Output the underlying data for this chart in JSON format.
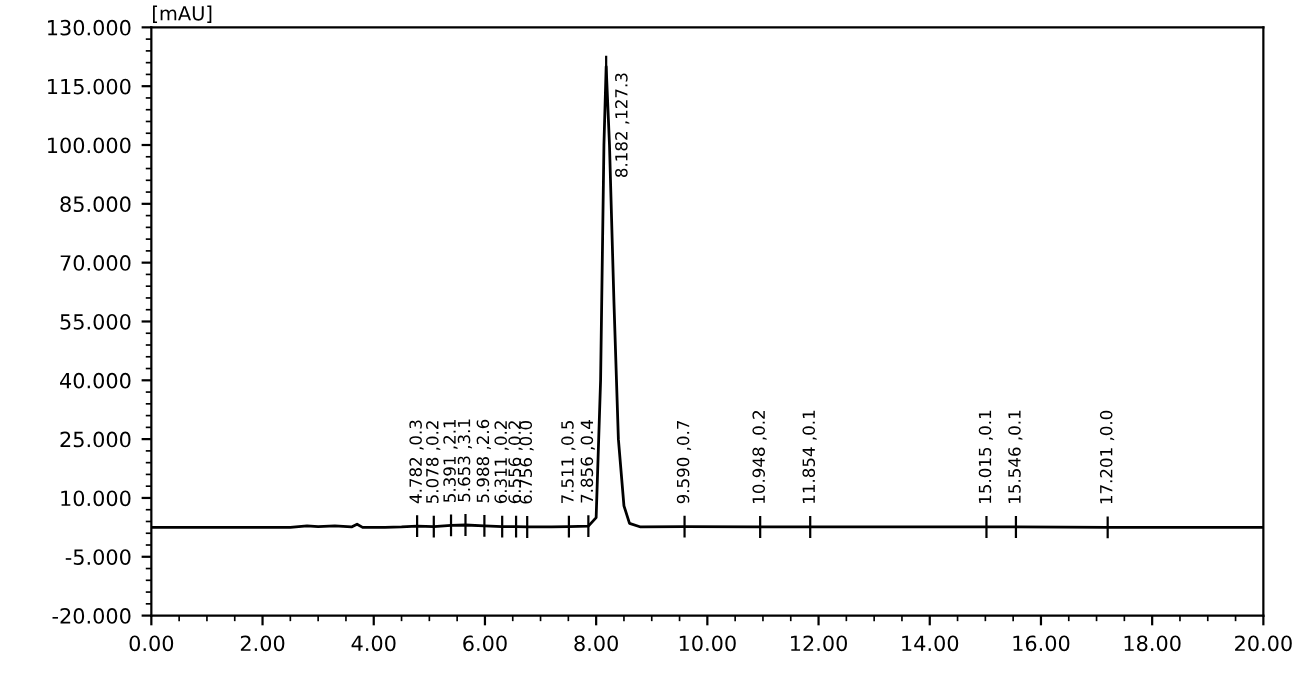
{
  "chart_data": {
    "type": "line",
    "ylabel": "[mAU]",
    "x": [
      0,
      2.5,
      2.8,
      3.0,
      3.3,
      3.6,
      3.7,
      3.8,
      4.2,
      4.5,
      4.78,
      5.08,
      5.39,
      5.65,
      5.99,
      6.31,
      6.56,
      6.76,
      7.2,
      7.51,
      7.86,
      8.0,
      8.08,
      8.14,
      8.18,
      8.24,
      8.32,
      8.4,
      8.5,
      8.6,
      8.8,
      9.59,
      10.95,
      11.85,
      15.02,
      15.55,
      17.2,
      20
    ],
    "series": [
      {
        "color": "#000000",
        "values": [
          2.5,
          2.5,
          2.9,
          2.7,
          2.9,
          2.6,
          3.3,
          2.5,
          2.5,
          2.6,
          2.8,
          2.7,
          3.0,
          3.1,
          2.9,
          2.7,
          2.7,
          2.6,
          2.6,
          2.7,
          2.8,
          5,
          40,
          100,
          120,
          100,
          60,
          25,
          8,
          3.5,
          2.6,
          2.7,
          2.6,
          2.6,
          2.6,
          2.6,
          2.5,
          2.5
        ]
      }
    ],
    "xlim": [
      0,
      20
    ],
    "xticks": [
      {
        "value": 0,
        "label": "0.00"
      },
      {
        "value": 2,
        "label": "2.00"
      },
      {
        "value": 4,
        "label": "4.00"
      },
      {
        "value": 6,
        "label": "6.00"
      },
      {
        "value": 8,
        "label": "8.00"
      },
      {
        "value": 10,
        "label": "10.00"
      },
      {
        "value": 12,
        "label": "12.00"
      },
      {
        "value": 14,
        "label": "14.00"
      },
      {
        "value": 16,
        "label": "16.00"
      },
      {
        "value": 18,
        "label": "18.00"
      },
      {
        "value": 20,
        "label": "20.00"
      }
    ],
    "ylim": [
      -20,
      130
    ],
    "yticks": [
      {
        "value": -20,
        "label": "-20.000"
      },
      {
        "value": -5,
        "label": "-5.000"
      },
      {
        "value": 10,
        "label": "10.000"
      },
      {
        "value": 25,
        "label": "25.000"
      },
      {
        "value": 40,
        "label": "40.000"
      },
      {
        "value": 55,
        "label": "55.000"
      },
      {
        "value": 70,
        "label": "70.000"
      },
      {
        "value": 85,
        "label": "85.000"
      },
      {
        "value": 100,
        "label": "100.000"
      },
      {
        "value": 115,
        "label": "115.000"
      },
      {
        "value": 130,
        "label": "130.000"
      }
    ],
    "grid": false,
    "legend": false,
    "annotations": [
      {
        "text": "4.782 ,0.3",
        "x": 4.78,
        "y": 2.8
      },
      {
        "text": "5.078 ,0.2",
        "x": 5.08,
        "y": 2.7
      },
      {
        "text": "5.391 ,2.1",
        "x": 5.39,
        "y": 3.0
      },
      {
        "text": "5.653 ,3.1",
        "x": 5.65,
        "y": 3.1
      },
      {
        "text": "5.988 ,2.6",
        "x": 5.99,
        "y": 2.9
      },
      {
        "text": "6.311 ,0.2",
        "x": 6.31,
        "y": 2.7
      },
      {
        "text": "6.556 ,0.2",
        "x": 6.56,
        "y": 2.7
      },
      {
        "text": "6.756 ,0.0",
        "x": 6.76,
        "y": 2.6
      },
      {
        "text": "7.511 ,0.5",
        "x": 7.51,
        "y": 2.7
      },
      {
        "text": "7.856 ,0.4",
        "x": 7.86,
        "y": 2.8
      },
      {
        "text": "8.182 ,127.3",
        "x": 8.18,
        "y": 120
      },
      {
        "text": "9.590 ,0.7",
        "x": 9.59,
        "y": 2.7
      },
      {
        "text": "10.948 ,0.2",
        "x": 10.95,
        "y": 2.6
      },
      {
        "text": "11.854 ,0.1",
        "x": 11.85,
        "y": 2.6
      },
      {
        "text": "15.015 ,0.1",
        "x": 15.02,
        "y": 2.6
      },
      {
        "text": "15.546 ,0.1",
        "x": 15.55,
        "y": 2.6
      },
      {
        "text": "17.201 ,0.0",
        "x": 17.2,
        "y": 2.5
      }
    ]
  }
}
